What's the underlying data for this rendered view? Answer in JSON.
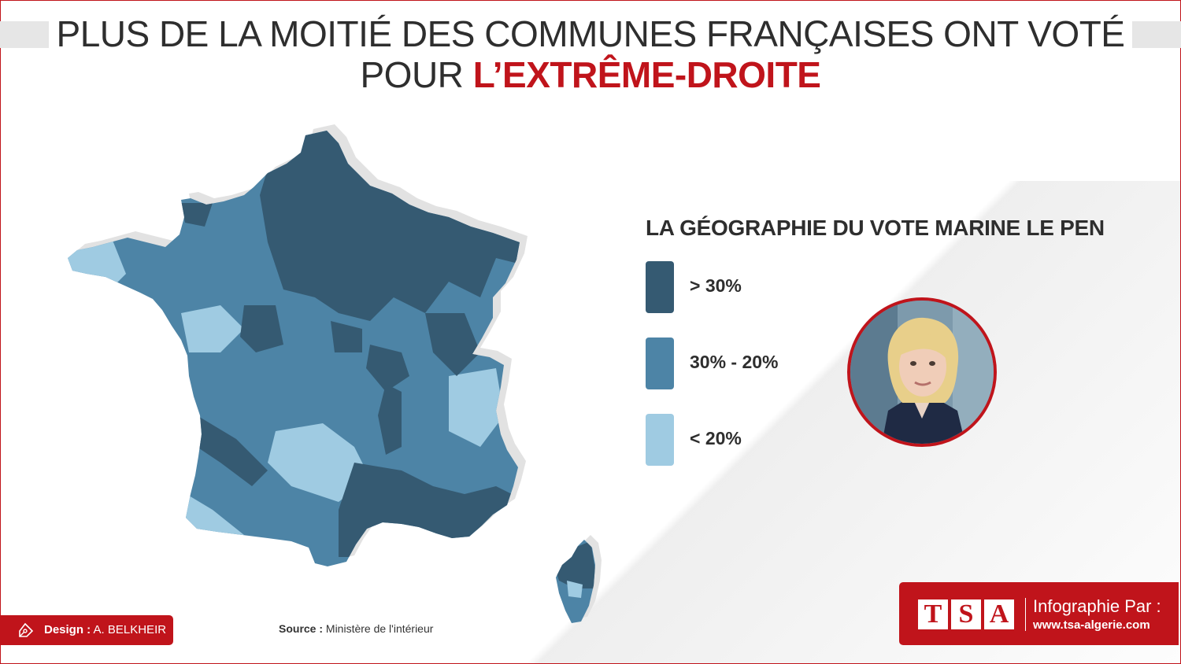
{
  "title": {
    "line1": "PLUS DE LA MOITIÉ DES COMMUNES FRANÇAISES ONT VOTÉ",
    "line2_plain": "POUR ",
    "line2_accent": "L’EXTRÊME-DROITE"
  },
  "legend": {
    "title": "LA GÉOGRAPHIE DU VOTE MARINE LE PEN",
    "items": [
      {
        "label": "> 30%",
        "color": "#355a72"
      },
      {
        "label": "30% - 20%",
        "color": "#4d84a6"
      },
      {
        "label": "< 20%",
        "color": "#9fcbe2"
      }
    ]
  },
  "colors": {
    "accent": "#c0141b",
    "dark": "#355a72",
    "mid": "#4d84a6",
    "light": "#9fcbe2",
    "shadow": "#e2e2e2"
  },
  "source": {
    "label": "Source :",
    "value": "Ministère de l'intérieur"
  },
  "design": {
    "icon": "pen-tool-icon",
    "label": "Design :",
    "name": "A. BELKHEIR"
  },
  "branding": {
    "logo_letters": [
      "T",
      "S",
      "A"
    ],
    "infographie": "Infographie Par :",
    "url": "www.tsa-algerie.com"
  }
}
